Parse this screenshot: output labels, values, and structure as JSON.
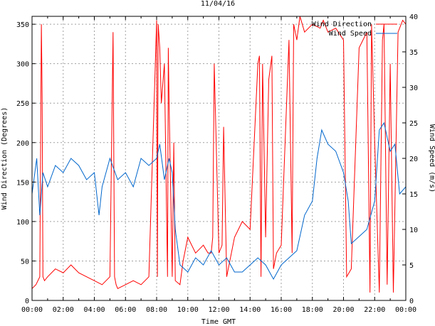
{
  "chart_data": {
    "type": "line",
    "title": "11/04/16",
    "xlabel": "Time GMT",
    "ylabel": "Wind Direction (Degrees)",
    "y2label": "Wind Speed (m/s)",
    "x_ticks": [
      "00:00",
      "02:00",
      "04:00",
      "06:00",
      "08:00",
      "10:00",
      "12:00",
      "14:00",
      "16:00",
      "18:00",
      "20:00",
      "22:00",
      "00:00"
    ],
    "xlim_hours": [
      0,
      24
    ],
    "ylim": [
      0,
      360
    ],
    "y_ticks": [
      0,
      50,
      100,
      150,
      200,
      250,
      300,
      350
    ],
    "y2lim": [
      0,
      40
    ],
    "y2_ticks": [
      0,
      5,
      10,
      15,
      20,
      25,
      30,
      35,
      40
    ],
    "grid": true,
    "legend_position": "top-right",
    "colors": {
      "direction": "#ff0000",
      "speed": "#0066cc"
    },
    "series": [
      {
        "name": "Wind Direction",
        "axis": "left",
        "x_hours": [
          0,
          0.25,
          0.5,
          0.6,
          0.65,
          0.7,
          0.8,
          1,
          1.5,
          2,
          2.5,
          3,
          3.5,
          4,
          4.5,
          5,
          5.2,
          5.3,
          5.4,
          5.5,
          6,
          6.5,
          7,
          7.5,
          8,
          8.05,
          8.1,
          8.2,
          8.3,
          8.5,
          8.7,
          8.75,
          8.8,
          9,
          9.1,
          9.2,
          9.5,
          9.7,
          10,
          10.5,
          11,
          11.3,
          11.5,
          11.6,
          11.7,
          12,
          12.2,
          12.3,
          12.5,
          13,
          13.5,
          14,
          14.5,
          14.6,
          14.7,
          14.8,
          15,
          15.2,
          15.4,
          15.5,
          15.7,
          16,
          16.5,
          16.7,
          16.8,
          17,
          17.2,
          17.5,
          18,
          18.5,
          18.6,
          18.7,
          19,
          19.5,
          20,
          20.2,
          20.5,
          21,
          21.5,
          21.7,
          21.8,
          22,
          22.3,
          22.5,
          22.6,
          22.8,
          23,
          23.2,
          23.5,
          23.8,
          24
        ],
        "values": [
          15,
          20,
          30,
          350,
          260,
          30,
          25,
          30,
          40,
          35,
          45,
          35,
          30,
          25,
          20,
          30,
          340,
          30,
          20,
          15,
          20,
          25,
          20,
          30,
          355,
          30,
          350,
          320,
          250,
          300,
          30,
          320,
          250,
          30,
          200,
          25,
          20,
          50,
          80,
          60,
          70,
          60,
          60,
          80,
          300,
          60,
          70,
          220,
          30,
          80,
          100,
          90,
          300,
          310,
          30,
          300,
          80,
          280,
          310,
          40,
          60,
          70,
          330,
          60,
          350,
          330,
          360,
          340,
          350,
          345,
          350,
          355,
          340,
          345,
          330,
          30,
          40,
          320,
          340,
          10,
          350,
          200,
          10,
          330,
          350,
          20,
          300,
          10,
          340,
          355,
          350
        ]
      },
      {
        "name": "Wind Speed",
        "axis": "right",
        "x_hours": [
          0,
          0.3,
          0.5,
          0.7,
          1,
          1.5,
          2,
          2.5,
          3,
          3.5,
          4,
          4.3,
          4.5,
          5,
          5.5,
          6,
          6.5,
          7,
          7.5,
          8,
          8.2,
          8.5,
          8.8,
          9,
          9.2,
          9.5,
          10,
          10.5,
          11,
          11.5,
          12,
          12.5,
          13,
          13.5,
          14,
          14.5,
          15,
          15.5,
          16,
          16.5,
          17,
          17.5,
          18,
          18.3,
          18.6,
          19,
          19.5,
          20,
          20.3,
          20.5,
          21,
          21.5,
          22,
          22.3,
          22.6,
          23,
          23.3,
          23.6,
          24
        ],
        "values": [
          15,
          20,
          12,
          18,
          16,
          19,
          18,
          20,
          19,
          17,
          18,
          12,
          16,
          20,
          17,
          18,
          16,
          20,
          19,
          20,
          22,
          17,
          20,
          18,
          10,
          5,
          4,
          6,
          5,
          7,
          5,
          6,
          4,
          4,
          5,
          6,
          5,
          3,
          5,
          6,
          7,
          12,
          14,
          20,
          24,
          22,
          21,
          18,
          14,
          8,
          9,
          10,
          14,
          24,
          25,
          21,
          22,
          15,
          16
        ]
      }
    ]
  }
}
